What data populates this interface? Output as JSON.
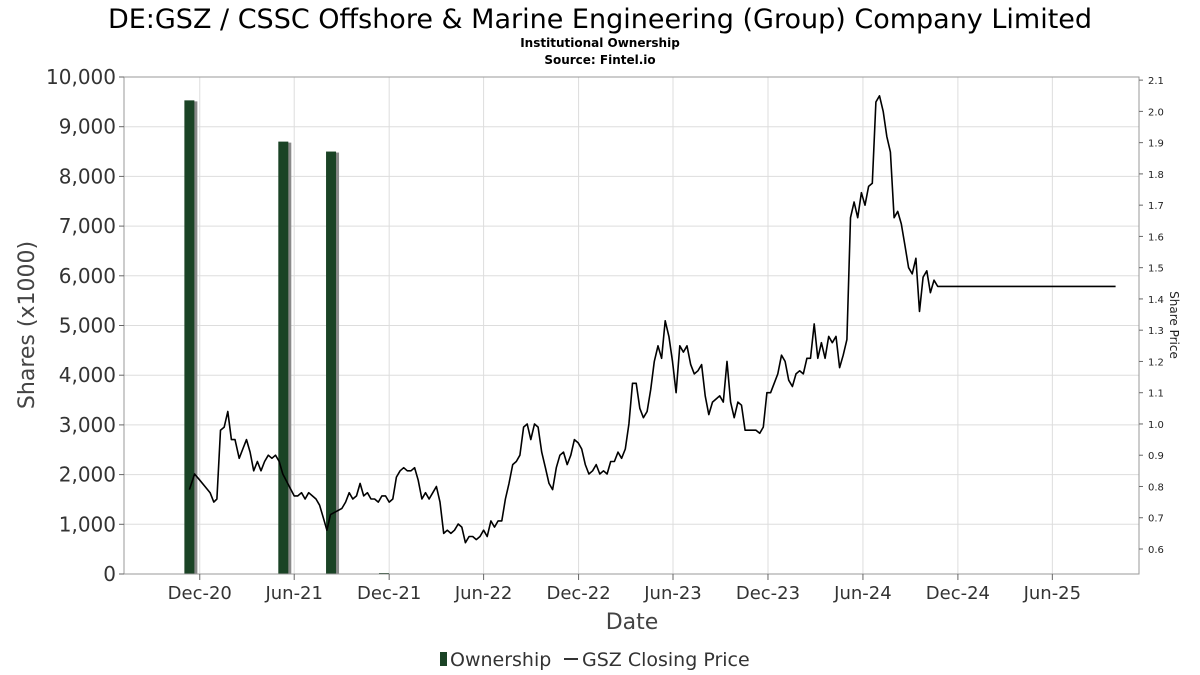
{
  "chart_data": {
    "type": "bar+line",
    "title": "DE:GSZ / CSSC Offshore & Marine Engineering (Group) Company Limited",
    "subtitle_lines": [
      "Institutional Ownership",
      "Source: Fintel.io"
    ],
    "xlabel": "Date",
    "ylabel": "Shares (x1000)",
    "y2label": "Share Price",
    "ylim": [
      0,
      10000
    ],
    "y2lim": [
      0.52,
      2.11
    ],
    "xlim": [
      "2020-07-08",
      "2025-11-15"
    ],
    "y_ticks": [
      "0",
      "1,000",
      "2,000",
      "3,000",
      "4,000",
      "5,000",
      "6,000",
      "7,000",
      "8,000",
      "9,000",
      "10,000"
    ],
    "y2_ticks": [
      "0.6",
      "0.7",
      "0.8",
      "0.9",
      "1.0",
      "1.1",
      "1.2",
      "1.3",
      "1.4",
      "1.5",
      "1.6",
      "1.7",
      "1.8",
      "1.9",
      "2.0",
      "2.1"
    ],
    "x_ticks": [
      {
        "date": "2020-12-01",
        "label": "Dec-20"
      },
      {
        "date": "2021-06-01",
        "label": "Jun-21"
      },
      {
        "date": "2021-12-01",
        "label": "Dec-21"
      },
      {
        "date": "2022-06-01",
        "label": "Jun-22"
      },
      {
        "date": "2022-12-01",
        "label": "Dec-22"
      },
      {
        "date": "2023-06-01",
        "label": "Jun-23"
      },
      {
        "date": "2023-12-01",
        "label": "Dec-23"
      },
      {
        "date": "2024-06-01",
        "label": "Jun-24"
      },
      {
        "date": "2024-12-01",
        "label": "Dec-24"
      },
      {
        "date": "2025-06-01",
        "label": "Jun-25"
      }
    ],
    "grid": true,
    "legend_position": "bottom",
    "legend": [
      "Ownership",
      "GSZ Closing Price"
    ],
    "colors": {
      "bar": "#1a4325",
      "bar_shadow": "#8a8a8a",
      "line": "#000000",
      "grid": "#dddddd",
      "frame": "#999999"
    },
    "series": [
      {
        "name": "Ownership",
        "type": "bar",
        "points": [
          {
            "date": "2020-11-11",
            "value": 9530
          },
          {
            "date": "2021-05-11",
            "value": 8700
          },
          {
            "date": "2021-08-11",
            "value": 8500
          },
          {
            "date": "2021-11-21",
            "value": 20
          }
        ]
      },
      {
        "name": "GSZ Closing Price",
        "type": "line",
        "points": [
          [
            "2020-11-11",
            0.79
          ],
          [
            "2020-11-21",
            0.84
          ],
          [
            "2020-12-01",
            0.82
          ],
          [
            "2020-12-11",
            0.8
          ],
          [
            "2020-12-21",
            0.78
          ],
          [
            "2020-12-28",
            0.75
          ],
          [
            "2021-01-03",
            0.76
          ],
          [
            "2021-01-10",
            0.98
          ],
          [
            "2021-01-17",
            0.99
          ],
          [
            "2021-01-24",
            1.04
          ],
          [
            "2021-01-31",
            0.95
          ],
          [
            "2021-02-07",
            0.95
          ],
          [
            "2021-02-15",
            0.89
          ],
          [
            "2021-02-22",
            0.92
          ],
          [
            "2021-03-01",
            0.95
          ],
          [
            "2021-03-08",
            0.91
          ],
          [
            "2021-03-15",
            0.85
          ],
          [
            "2021-03-22",
            0.88
          ],
          [
            "2021-03-29",
            0.85
          ],
          [
            "2021-04-05",
            0.88
          ],
          [
            "2021-04-12",
            0.9
          ],
          [
            "2021-04-19",
            0.89
          ],
          [
            "2021-04-26",
            0.9
          ],
          [
            "2021-05-03",
            0.88
          ],
          [
            "2021-05-10",
            0.84
          ],
          [
            "2021-06-01",
            0.77
          ],
          [
            "2021-06-08",
            0.77
          ],
          [
            "2021-06-15",
            0.78
          ],
          [
            "2021-06-22",
            0.76
          ],
          [
            "2021-06-29",
            0.78
          ],
          [
            "2021-07-06",
            0.77
          ],
          [
            "2021-07-13",
            0.76
          ],
          [
            "2021-07-20",
            0.74
          ],
          [
            "2021-07-27",
            0.7
          ],
          [
            "2021-08-03",
            0.66
          ],
          [
            "2021-08-10",
            0.71
          ],
          [
            "2021-09-01",
            0.73
          ],
          [
            "2021-09-08",
            0.75
          ],
          [
            "2021-09-15",
            0.78
          ],
          [
            "2021-09-22",
            0.76
          ],
          [
            "2021-09-29",
            0.77
          ],
          [
            "2021-10-06",
            0.81
          ],
          [
            "2021-10-13",
            0.77
          ],
          [
            "2021-10-20",
            0.78
          ],
          [
            "2021-10-27",
            0.76
          ],
          [
            "2021-11-03",
            0.76
          ],
          [
            "2021-11-10",
            0.75
          ],
          [
            "2021-11-17",
            0.77
          ],
          [
            "2021-11-24",
            0.77
          ],
          [
            "2021-12-01",
            0.75
          ],
          [
            "2021-12-08",
            0.76
          ],
          [
            "2021-12-15",
            0.83
          ],
          [
            "2021-12-22",
            0.85
          ],
          [
            "2021-12-29",
            0.86
          ],
          [
            "2022-01-05",
            0.85
          ],
          [
            "2022-01-12",
            0.85
          ],
          [
            "2022-01-19",
            0.86
          ],
          [
            "2022-01-26",
            0.82
          ],
          [
            "2022-02-02",
            0.76
          ],
          [
            "2022-02-09",
            0.78
          ],
          [
            "2022-02-16",
            0.76
          ],
          [
            "2022-02-23",
            0.78
          ],
          [
            "2022-03-02",
            0.8
          ],
          [
            "2022-03-09",
            0.75
          ],
          [
            "2022-03-16",
            0.65
          ],
          [
            "2022-03-23",
            0.66
          ],
          [
            "2022-03-30",
            0.65
          ],
          [
            "2022-04-06",
            0.66
          ],
          [
            "2022-04-13",
            0.68
          ],
          [
            "2022-04-20",
            0.67
          ],
          [
            "2022-04-27",
            0.62
          ],
          [
            "2022-05-04",
            0.64
          ],
          [
            "2022-05-11",
            0.64
          ],
          [
            "2022-05-18",
            0.63
          ],
          [
            "2022-05-25",
            0.64
          ],
          [
            "2022-06-01",
            0.66
          ],
          [
            "2022-06-08",
            0.64
          ],
          [
            "2022-06-15",
            0.69
          ],
          [
            "2022-06-22",
            0.67
          ],
          [
            "2022-06-29",
            0.69
          ],
          [
            "2022-07-06",
            0.69
          ],
          [
            "2022-07-13",
            0.76
          ],
          [
            "2022-07-20",
            0.81
          ],
          [
            "2022-07-27",
            0.87
          ],
          [
            "2022-08-03",
            0.88
          ],
          [
            "2022-08-10",
            0.9
          ],
          [
            "2022-08-17",
            0.99
          ],
          [
            "2022-08-24",
            1.0
          ],
          [
            "2022-08-31",
            0.95
          ],
          [
            "2022-09-07",
            1.0
          ],
          [
            "2022-09-14",
            0.99
          ],
          [
            "2022-09-21",
            0.91
          ],
          [
            "2022-09-28",
            0.86
          ],
          [
            "2022-10-05",
            0.81
          ],
          [
            "2022-10-12",
            0.79
          ],
          [
            "2022-10-19",
            0.86
          ],
          [
            "2022-10-26",
            0.9
          ],
          [
            "2022-11-02",
            0.91
          ],
          [
            "2022-11-09",
            0.87
          ],
          [
            "2022-11-16",
            0.9
          ],
          [
            "2022-11-23",
            0.95
          ],
          [
            "2022-11-30",
            0.94
          ],
          [
            "2022-12-07",
            0.92
          ],
          [
            "2022-12-14",
            0.87
          ],
          [
            "2022-12-21",
            0.84
          ],
          [
            "2022-12-28",
            0.85
          ],
          [
            "2023-01-04",
            0.87
          ],
          [
            "2023-01-11",
            0.84
          ],
          [
            "2023-01-18",
            0.85
          ],
          [
            "2023-01-25",
            0.84
          ],
          [
            "2023-02-01",
            0.88
          ],
          [
            "2023-02-08",
            0.88
          ],
          [
            "2023-02-15",
            0.91
          ],
          [
            "2023-02-22",
            0.89
          ],
          [
            "2023-03-01",
            0.92
          ],
          [
            "2023-03-08",
            1.0
          ],
          [
            "2023-03-15",
            1.13
          ],
          [
            "2023-03-22",
            1.13
          ],
          [
            "2023-03-29",
            1.05
          ],
          [
            "2023-04-05",
            1.02
          ],
          [
            "2023-04-12",
            1.04
          ],
          [
            "2023-04-19",
            1.11
          ],
          [
            "2023-04-26",
            1.2
          ],
          [
            "2023-05-03",
            1.25
          ],
          [
            "2023-05-10",
            1.21
          ],
          [
            "2023-05-17",
            1.33
          ],
          [
            "2023-05-24",
            1.28
          ],
          [
            "2023-05-31",
            1.2
          ],
          [
            "2023-06-07",
            1.1
          ],
          [
            "2023-06-14",
            1.25
          ],
          [
            "2023-06-21",
            1.23
          ],
          [
            "2023-06-28",
            1.25
          ],
          [
            "2023-07-05",
            1.19
          ],
          [
            "2023-07-12",
            1.16
          ],
          [
            "2023-07-19",
            1.17
          ],
          [
            "2023-07-26",
            1.19
          ],
          [
            "2023-08-02",
            1.09
          ],
          [
            "2023-08-09",
            1.03
          ],
          [
            "2023-08-16",
            1.07
          ],
          [
            "2023-08-23",
            1.08
          ],
          [
            "2023-08-30",
            1.09
          ],
          [
            "2023-09-06",
            1.07
          ],
          [
            "2023-09-13",
            1.2
          ],
          [
            "2023-09-20",
            1.07
          ],
          [
            "2023-09-27",
            1.02
          ],
          [
            "2023-10-04",
            1.07
          ],
          [
            "2023-10-11",
            1.06
          ],
          [
            "2023-10-18",
            0.98
          ],
          [
            "2023-10-25",
            0.98
          ],
          [
            "2023-11-01",
            0.98
          ],
          [
            "2023-11-08",
            0.98
          ],
          [
            "2023-11-15",
            0.97
          ],
          [
            "2023-11-22",
            0.99
          ],
          [
            "2023-11-29",
            1.1
          ],
          [
            "2023-12-06",
            1.1
          ],
          [
            "2023-12-13",
            1.13
          ],
          [
            "2023-12-20",
            1.16
          ],
          [
            "2023-12-27",
            1.22
          ],
          [
            "2024-01-03",
            1.2
          ],
          [
            "2024-01-10",
            1.14
          ],
          [
            "2024-01-17",
            1.12
          ],
          [
            "2024-01-24",
            1.16
          ],
          [
            "2024-01-31",
            1.17
          ],
          [
            "2024-02-07",
            1.16
          ],
          [
            "2024-02-14",
            1.21
          ],
          [
            "2024-02-21",
            1.21
          ],
          [
            "2024-02-28",
            1.32
          ],
          [
            "2024-03-06",
            1.21
          ],
          [
            "2024-03-13",
            1.26
          ],
          [
            "2024-03-20",
            1.21
          ],
          [
            "2024-03-27",
            1.28
          ],
          [
            "2024-04-03",
            1.26
          ],
          [
            "2024-04-10",
            1.28
          ],
          [
            "2024-04-17",
            1.18
          ],
          [
            "2024-04-24",
            1.22
          ],
          [
            "2024-05-01",
            1.27
          ],
          [
            "2024-05-08",
            1.66
          ],
          [
            "2024-05-15",
            1.71
          ],
          [
            "2024-05-22",
            1.66
          ],
          [
            "2024-05-29",
            1.74
          ],
          [
            "2024-06-05",
            1.7
          ],
          [
            "2024-06-12",
            1.76
          ],
          [
            "2024-06-19",
            1.77
          ],
          [
            "2024-06-26",
            2.03
          ],
          [
            "2024-07-03",
            2.05
          ],
          [
            "2024-07-10",
            2.0
          ],
          [
            "2024-07-17",
            1.92
          ],
          [
            "2024-07-24",
            1.87
          ],
          [
            "2024-07-31",
            1.66
          ],
          [
            "2024-08-07",
            1.68
          ],
          [
            "2024-08-14",
            1.64
          ],
          [
            "2024-08-21",
            1.57
          ],
          [
            "2024-08-28",
            1.5
          ],
          [
            "2024-09-04",
            1.48
          ],
          [
            "2024-09-11",
            1.53
          ],
          [
            "2024-09-18",
            1.36
          ],
          [
            "2024-09-25",
            1.47
          ],
          [
            "2024-10-02",
            1.49
          ],
          [
            "2024-10-09",
            1.42
          ],
          [
            "2024-10-16",
            1.46
          ],
          [
            "2024-10-23",
            1.44
          ],
          [
            "2024-11-01",
            1.44
          ],
          [
            "2025-10-01",
            1.44
          ]
        ]
      }
    ]
  }
}
